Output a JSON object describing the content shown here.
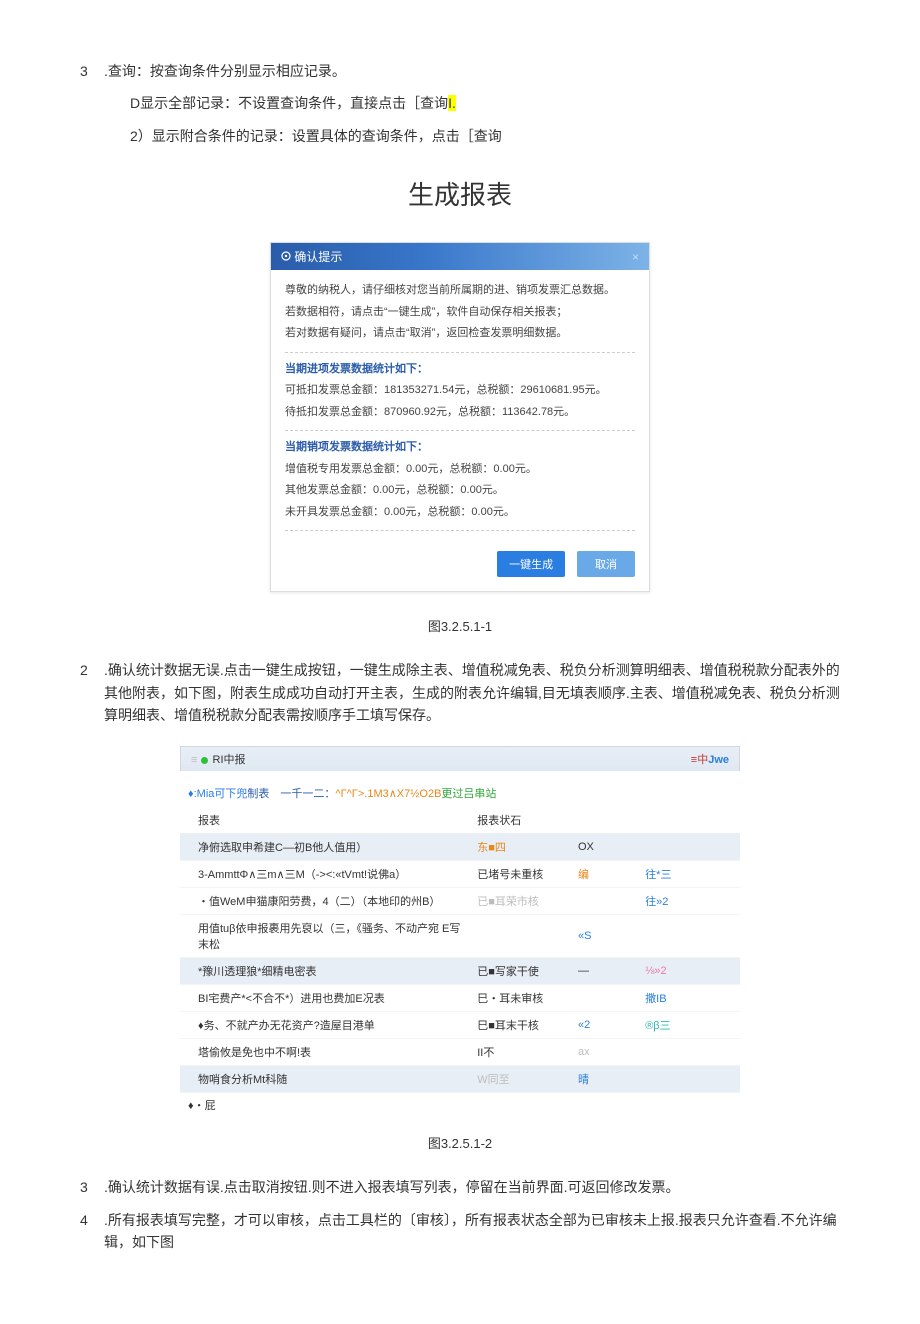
{
  "line3": {
    "num": "3",
    "text": ".查询：按查询条件分别显示相应记录。"
  },
  "line3d": {
    "prefix": "D显示全部记录：不设置查询条件，直接点击［查询",
    "hl": "I."
  },
  "line3_2": "2）显示附合条件的记录：设置具体的查询条件，点击［查询",
  "h1": "生成报表",
  "dialog": {
    "title": "确认提示",
    "p1": "尊敬的纳税人，请仔细核对您当前所属期的进、销项发票汇总数据。",
    "p2": "若数据相符，请点击“一键生成”，软件自动保存相关报表；",
    "p3": "若对数据有疑问，请点击“取消”，返回检查发票明细数据。",
    "sec1": "当期进项发票数据统计如下：",
    "s1a": "可抵扣发票总金额：181353271.54元，总税额：29610681.95元。",
    "s1b": "待抵扣发票总金额：870960.92元，总税额：113642.78元。",
    "sec2": "当期销项发票数据统计如下：",
    "s2a": "增值税专用发票总金额：0.00元，总税额：0.00元。",
    "s2b": "其他发票总金额：0.00元，总税额：0.00元。",
    "s2c": "未开具发票总金额：0.00元，总税额：0.00元。",
    "btn_ok": "一键生成",
    "btn_cancel": "取消"
  },
  "cap1": "图3.2.5.1-1",
  "item2": {
    "num": "2",
    "text": ".确认统计数据无误.点击一键生成按钮，一键生成除主表、增值税减免表、税负分析测算明细表、增值税税款分配表外的其他附表，如下图，附表生成成功自动打开主表，生成的附表允许编辑,目无填表顺序.主表、增值税减免表、税负分析测算明细表、增值税税款分配表需按顺序手工填写保存。"
  },
  "bar": {
    "left_pre": "≡",
    "left_mid": "RI中报",
    "right_pre": "≡中",
    "right_jwe": "Jwe"
  },
  "subnote": {
    "a": "♦:Mia可下兜",
    "b": "制表　一千一二：",
    "c": "^Γ^Γ>.1M3∧X7½O2B",
    "d": "更过吕串站"
  },
  "thead": {
    "c1": "报表",
    "c2": "报表状石",
    "c3": "",
    "c4": ""
  },
  "rows": [
    {
      "c1": "净俯选取申希建C—初B他人值用）",
      "c2": "东■四",
      "c2cls": "orange-txt",
      "c3": "OX",
      "c3cls": "",
      "c4": "",
      "c4cls": "",
      "rowcls": "row-blue"
    },
    {
      "c1": "3-AmmttΦ∧三m∧三M（-><:«tVmt!说佛a）",
      "c2": "已堵号未重核",
      "c2cls": "",
      "c3": "编",
      "c3cls": "orange-txt",
      "c4": "往*三",
      "c4cls": "blue-txt",
      "rowcls": ""
    },
    {
      "c1": "・值WeM申猫康阳劳费，4（二）（本地印的州B）",
      "c2": "已■耳荣市核",
      "c2cls": "pale-txt",
      "c3": "",
      "c3cls": "",
      "c4": "往»2",
      "c4cls": "blue-txt",
      "rowcls": ""
    },
    {
      "c1": "用值tuβ依申报裹用先裒以（三，《骚务、不动产宛 E写末松",
      "c2": "",
      "c2cls": "",
      "c3": "«S",
      "c3cls": "blue-txt",
      "c4": "",
      "c4cls": "",
      "rowcls": ""
    },
    {
      "c1": "*豫川透理狼*细精电密表",
      "c2": "已■写家干使",
      "c2cls": "",
      "c3": "—",
      "c3cls": "",
      "c4": "⅛»2",
      "c4cls": "pink-txt",
      "rowcls": "row-blue"
    },
    {
      "c1": "BI宅费产*<不合不*）进用也费加E况表",
      "c2": "巳・耳未审核",
      "c2cls": "",
      "c3": "",
      "c3cls": "",
      "c4": "撒IB",
      "c4cls": "blue-txt",
      "rowcls": ""
    },
    {
      "c1": "♦务、不就产办无花资产?造屋目港单",
      "c2": "巳■耳末干核",
      "c2cls": "",
      "c3": "«2",
      "c3cls": "blue-txt",
      "c4": "®β三",
      "c4cls": "teal-txt",
      "rowcls": ""
    },
    {
      "c1": "塔偷攸是免也中不啊!表",
      "c2": "II不",
      "c2cls": "",
      "c3": "ax",
      "c3cls": "pale-txt",
      "c4": "",
      "c4cls": "",
      "rowcls": ""
    },
    {
      "c1": "物哨食分析Mt科随",
      "c2": "W同至",
      "c2cls": "pale-txt",
      "c3": "晴",
      "c3cls": "blue-txt",
      "c4": "",
      "c4cls": "",
      "rowcls": "row-blue"
    }
  ],
  "after_tbl": "♦・屁",
  "cap2": "图3.2.5.1-2",
  "item3": {
    "num": "3",
    "text": ".确认统计数据有误.点击取消按钮.则不进入报表填写列表，停留在当前界面.可返回修改发票。"
  },
  "item4": {
    "num": "4",
    "text": ".所有报表填写完整，才可以审核，点击工具栏的〔审核〕，所有报表状态全部为已审核未上报.报表只允许查看.不允许编辑，如下图"
  }
}
